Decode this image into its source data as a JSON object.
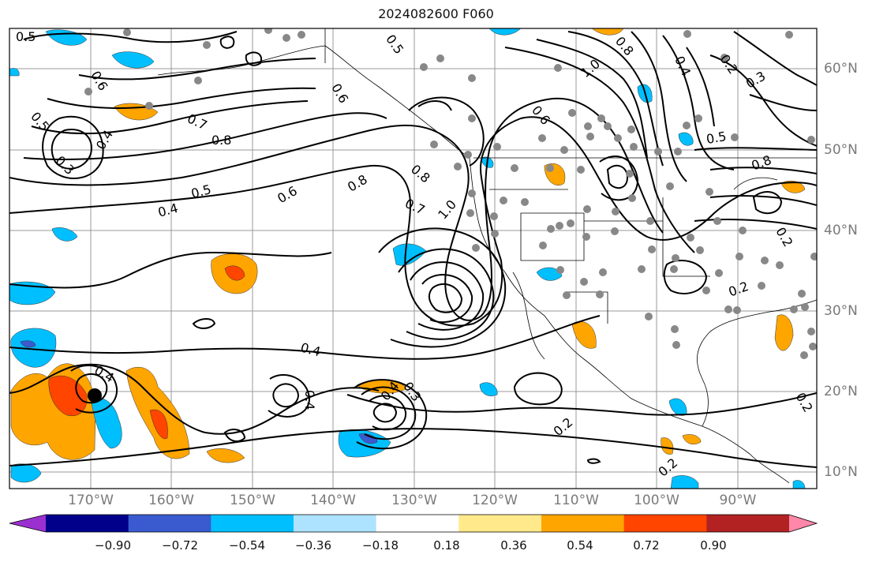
{
  "title": "2024082600 F060",
  "lon_labels": [
    "170°W",
    "160°W",
    "150°W",
    "140°W",
    "130°W",
    "120°W",
    "110°W",
    "100°W",
    "90°W"
  ],
  "lat_labels": [
    "60°N",
    "50°N",
    "40°N",
    "30°N",
    "20°N",
    "10°N"
  ],
  "colorbar": {
    "tick_labels": [
      "−0.90",
      "−0.72",
      "−0.54",
      "−0.36",
      "−0.18",
      "0.18",
      "0.36",
      "0.54",
      "0.72",
      "0.90"
    ],
    "colors": [
      "#9b30d0",
      "#00008b",
      "#3a5bd0",
      "#00bfff",
      "#aee3ff",
      "#ffffff",
      "#ffe98a",
      "#ffa500",
      "#ff4500",
      "#b22222",
      "#ff88aa"
    ]
  },
  "contour_labels": [
    "0.5",
    "0.6",
    "0.5",
    "0.4",
    "0.3",
    "0.7",
    "0.8",
    "0.5",
    "0.4",
    "0.6",
    "0.8",
    "0.8",
    "0.7",
    "1.0",
    "0.6",
    "0.5",
    "1.0",
    "0.8",
    "0.4",
    "0.2",
    "0.3",
    "0.5",
    "0.8",
    "0.6",
    "0.2",
    "0.4",
    "0.4",
    "0.4",
    "0.4",
    "0.3",
    "0.2",
    "0.2",
    "0.2",
    "0.2"
  ]
}
